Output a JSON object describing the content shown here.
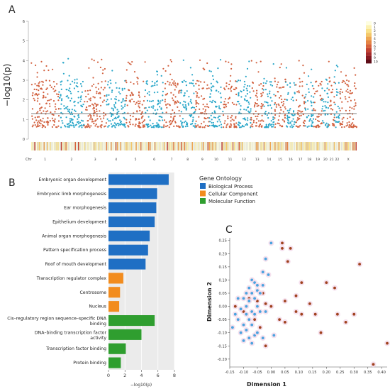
{
  "panels": {
    "a": "A",
    "b": "B",
    "c": "C"
  },
  "chart_data": [
    {
      "type": "scatter",
      "id": "manhattan",
      "ylabel": "−log10(p)",
      "ylim": [
        0,
        6
      ],
      "yticks": [
        "0",
        "1",
        "2",
        "3",
        "4",
        "5",
        "6"
      ],
      "threshold": 1.3,
      "chrom_label": "Chr",
      "chromosomes": [
        "1",
        "2",
        "3",
        "4",
        "5",
        "6",
        "7",
        "8",
        "9",
        "10",
        "11",
        "12",
        "13",
        "14",
        "15",
        "16",
        "17",
        "18",
        "19",
        "20",
        "21",
        "22",
        "X"
      ],
      "chrom_tick_labels": [
        "1",
        "2",
        "3",
        "4",
        "5",
        "6",
        "7",
        "8",
        "9",
        "10",
        "11",
        "12",
        "13",
        "14",
        "15",
        "16",
        "17",
        "18",
        "19",
        "20",
        "21",
        "22",
        "X"
      ],
      "chrom_widths": [
        10,
        9,
        8,
        7,
        7,
        6.5,
        6,
        5.5,
        5,
        5,
        5,
        5,
        4.5,
        4,
        4,
        3.5,
        3.5,
        3,
        3,
        2.5,
        2,
        2,
        6
      ],
      "colors": {
        "odd": "#d2613f",
        "even": "#2aa7c9",
        "threshold": "#555555"
      },
      "density_legend": {
        "labels": [
          "0",
          "1",
          "2",
          "3",
          "4",
          "5",
          "6",
          "7",
          "8",
          "9",
          "10"
        ],
        "colors": [
          "#fefee0",
          "#fcf2b2",
          "#f9e28a",
          "#f4c768",
          "#eea652",
          "#e58444",
          "#d7623a",
          "#c34332",
          "#a72b2a",
          "#861a22",
          "#5e0d18"
        ]
      }
    },
    {
      "type": "bar",
      "id": "go-enrichment",
      "orientation": "horizontal",
      "xlabel": "−log10(p)",
      "xlim": [
        0,
        8
      ],
      "xticks": [
        "0",
        "2",
        "4",
        "6",
        "8"
      ],
      "legend_title": "Gene Ontology",
      "legend": [
        {
          "name": "Biological Process",
          "color": "#1f6fc4"
        },
        {
          "name": "Cellular Component",
          "color": "#f28c1e"
        },
        {
          "name": "Molecular Function",
          "color": "#2f9e2f"
        }
      ],
      "categories": [
        "Embryonic organ development",
        "Embryonic limb morphogenesis",
        "Ear morphogenesis",
        "Epithelium development",
        "Animal organ morphogenesis",
        "Pattern specification process",
        "Roof of mouth development",
        "Transcription regulator complex",
        "Centrosome",
        "Nucleus",
        "Cis–regulatory region sequence–specific DNA binding",
        "DNA–binding transcription factor activity",
        "Transcription factor binding",
        "Protein binding"
      ],
      "values": [
        7.3,
        5.9,
        5.8,
        5.6,
        5.0,
        4.8,
        4.5,
        1.8,
        1.4,
        1.3,
        5.6,
        4.0,
        2.1,
        1.5
      ],
      "groups": [
        "Biological Process",
        "Biological Process",
        "Biological Process",
        "Biological Process",
        "Biological Process",
        "Biological Process",
        "Biological Process",
        "Cellular Component",
        "Cellular Component",
        "Cellular Component",
        "Molecular Function",
        "Molecular Function",
        "Molecular Function",
        "Molecular Function"
      ]
    },
    {
      "type": "scatter",
      "id": "mds",
      "xlabel": "Dimension 1",
      "ylabel": "Dimension 2",
      "xlim": [
        -0.15,
        0.42
      ],
      "ylim": [
        -0.23,
        0.26
      ],
      "xticks": [
        "-0.15",
        "-0.10",
        "-0.05",
        "0.00",
        "0.05",
        "0.10",
        "0.15",
        "0.20",
        "0.25",
        "0.30",
        "0.35",
        "0.40"
      ],
      "yticks": [
        "0.25",
        "0.20",
        "0.15",
        "0.10",
        "0.05",
        "0.00",
        "-0.05",
        "-0.10",
        "-0.15",
        "-0.20"
      ],
      "colors": {
        "brown": "#a0421e",
        "blue": "#4aa3df"
      },
      "series": [
        {
          "color": "brown",
          "points": [
            [
              0.04,
              0.24
            ],
            [
              0.07,
              0.22
            ],
            [
              0.32,
              0.16
            ],
            [
              0.06,
              0.17
            ],
            [
              0.11,
              0.09
            ],
            [
              0.2,
              0.09
            ],
            [
              0.23,
              0.07
            ],
            [
              -0.03,
              0.05
            ],
            [
              0.09,
              0.04
            ],
            [
              -0.08,
              0.03
            ],
            [
              0.05,
              0.02
            ],
            [
              -0.05,
              0.02
            ],
            [
              0.14,
              0.01
            ],
            [
              -0.02,
              0.01
            ],
            [
              -0.13,
              0.0
            ],
            [
              0.0,
              0.0
            ],
            [
              0.09,
              -0.02
            ],
            [
              0.11,
              -0.03
            ],
            [
              -0.1,
              -0.02
            ],
            [
              0.16,
              -0.03
            ],
            [
              0.24,
              -0.03
            ],
            [
              0.3,
              -0.03
            ],
            [
              0.27,
              -0.06
            ],
            [
              0.05,
              -0.06
            ],
            [
              -0.06,
              -0.05
            ],
            [
              0.18,
              -0.1
            ],
            [
              -0.04,
              -0.08
            ],
            [
              0.42,
              -0.14
            ],
            [
              -0.02,
              -0.15
            ],
            [
              0.37,
              -0.22
            ],
            [
              0.04,
              0.22
            ],
            [
              0.03,
              -0.05
            ]
          ]
        },
        {
          "color": "blue",
          "points": [
            [
              0.0,
              0.24
            ],
            [
              -0.02,
              0.18
            ],
            [
              -0.03,
              0.13
            ],
            [
              -0.01,
              0.12
            ],
            [
              -0.07,
              0.1
            ],
            [
              -0.06,
              0.09
            ],
            [
              -0.05,
              0.08
            ],
            [
              -0.03,
              0.08
            ],
            [
              -0.08,
              0.07
            ],
            [
              -0.05,
              0.06
            ],
            [
              -0.09,
              0.05
            ],
            [
              -0.07,
              0.05
            ],
            [
              -0.04,
              0.05
            ],
            [
              -0.1,
              0.03
            ],
            [
              -0.06,
              0.03
            ],
            [
              -0.12,
              0.03
            ],
            [
              -0.08,
              0.02
            ],
            [
              -0.05,
              0.0
            ],
            [
              -0.09,
              0.0
            ],
            [
              -0.11,
              -0.01
            ],
            [
              -0.07,
              -0.02
            ],
            [
              -0.13,
              -0.03
            ],
            [
              -0.09,
              -0.03
            ],
            [
              -0.06,
              -0.03
            ],
            [
              -0.12,
              -0.05
            ],
            [
              -0.08,
              -0.05
            ],
            [
              -0.1,
              -0.07
            ],
            [
              -0.07,
              -0.07
            ],
            [
              -0.14,
              -0.08
            ],
            [
              -0.09,
              -0.09
            ],
            [
              -0.11,
              -0.1
            ],
            [
              -0.06,
              -0.11
            ],
            [
              -0.08,
              -0.12
            ],
            [
              -0.1,
              -0.13
            ],
            [
              -0.05,
              -0.1
            ],
            [
              -0.03,
              -0.12
            ],
            [
              -0.07,
              -0.14
            ],
            [
              -0.04,
              -0.02
            ],
            [
              -0.02,
              -0.02
            ],
            [
              0.01,
              -0.11
            ]
          ]
        }
      ]
    }
  ]
}
